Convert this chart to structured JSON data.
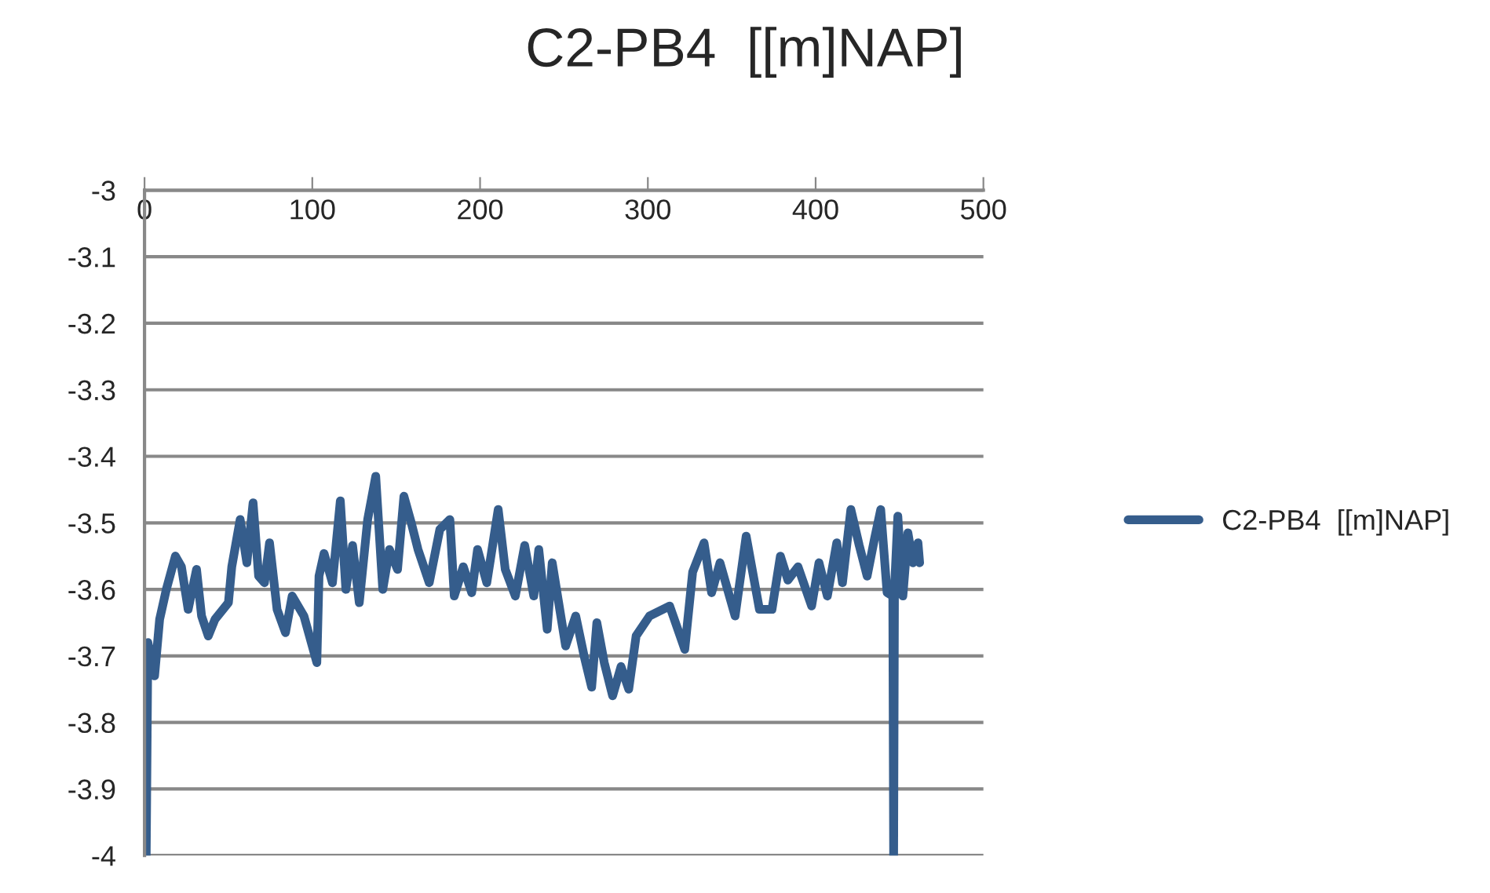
{
  "chart_data": {
    "type": "line",
    "title": "C2-PB4  [[m]NAP]",
    "xlim": [
      0,
      500
    ],
    "xticks": [
      0,
      100,
      200,
      300,
      400,
      500
    ],
    "ylim": [
      -4,
      -3
    ],
    "yticks": [
      -3,
      -3.1,
      -3.2,
      -3.3,
      -3.4,
      -3.5,
      -3.6,
      -3.7,
      -3.8,
      -3.9,
      -4
    ],
    "grid": "y",
    "legend": "right",
    "marker": "none",
    "line_style": "solid",
    "series": [
      {
        "name": "C2-PB4  [[m]NAP]",
        "color": "#355d8c",
        "x": [
          1,
          2,
          6,
          9,
          13,
          18.4,
          22,
          26,
          31,
          34,
          38,
          42,
          50,
          52,
          57,
          61,
          64.7,
          68,
          71.5,
          74.5,
          79,
          84,
          88,
          95,
          102.7,
          104,
          107,
          112,
          116.7,
          120,
          124,
          128,
          133,
          137.8,
          142,
          146,
          150.8,
          154.6,
          159,
          163,
          169.7,
          176,
          182,
          184.6,
          190,
          195,
          198.5,
          204,
          210.8,
          215,
          221,
          226.6,
          232,
          235,
          240,
          243,
          251,
          257,
          262,
          266.5,
          269.6,
          274,
          279,
          284,
          288.6,
          293,
          301,
          313,
          322,
          326.7,
          333.5,
          338,
          343,
          352,
          358.6,
          366.5,
          374,
          379,
          383.5,
          389.5,
          397.6,
          402,
          407,
          412.6,
          416,
          421,
          426,
          430.7,
          435,
          438.8,
          442.6,
          446,
          446.5,
          447,
          449,
          452,
          455,
          458,
          461,
          462
        ],
        "values": [
          -4.0,
          -3.68,
          -3.73,
          -3.645,
          -3.6,
          -3.55,
          -3.566,
          -3.63,
          -3.57,
          -3.64,
          -3.67,
          -3.645,
          -3.62,
          -3.566,
          -3.495,
          -3.56,
          -3.47,
          -3.58,
          -3.59,
          -3.53,
          -3.63,
          -3.665,
          -3.61,
          -3.64,
          -3.71,
          -3.58,
          -3.546,
          -3.59,
          -3.467,
          -3.6,
          -3.534,
          -3.62,
          -3.495,
          -3.43,
          -3.6,
          -3.54,
          -3.57,
          -3.46,
          -3.5,
          -3.54,
          -3.59,
          -3.51,
          -3.495,
          -3.61,
          -3.566,
          -3.605,
          -3.54,
          -3.59,
          -3.48,
          -3.57,
          -3.61,
          -3.534,
          -3.61,
          -3.54,
          -3.66,
          -3.56,
          -3.685,
          -3.64,
          -3.7,
          -3.747,
          -3.65,
          -3.71,
          -3.76,
          -3.716,
          -3.75,
          -3.67,
          -3.64,
          -3.625,
          -3.69,
          -3.574,
          -3.53,
          -3.605,
          -3.56,
          -3.64,
          -3.52,
          -3.63,
          -3.63,
          -3.55,
          -3.586,
          -3.566,
          -3.625,
          -3.56,
          -3.61,
          -3.53,
          -3.59,
          -3.48,
          -3.534,
          -3.58,
          -3.525,
          -3.48,
          -3.605,
          -3.61,
          -4.0,
          -3.6,
          -3.49,
          -3.61,
          -3.515,
          -3.56,
          -3.53,
          -3.56
        ]
      }
    ]
  }
}
